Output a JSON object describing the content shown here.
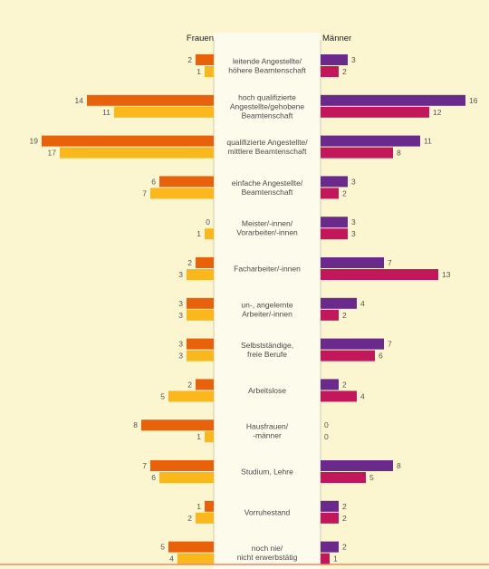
{
  "chart_data": {
    "type": "bar",
    "left_header": "Frauen",
    "right_header": "Männer",
    "colors": {
      "background": "#fbf6cf",
      "label_column": "#fdfbec",
      "frauen_a": "#e8620c",
      "frauen_b": "#fbb81c",
      "maenner_a": "#6a2a8c",
      "maenner_b": "#c2185b",
      "bottom_line": "#e58a6a"
    },
    "categories": [
      [
        "leitende Angestellte/",
        "höhere Beamtenschaft"
      ],
      [
        "hoch qualifizierte",
        "Angestellte/gehobene",
        "Beamtenschaft"
      ],
      [
        "qualifizierte Angestellte/",
        "mittlere Beamtenschaft"
      ],
      [
        "einfache Angestellte/",
        "Beamtenschaft"
      ],
      [
        "Meister/-innen/",
        "Vorarbeiter/-innen"
      ],
      [
        "Facharbeiter/-innen"
      ],
      [
        "un-, angelernte",
        "Arbeiter/-innen"
      ],
      [
        "Selbstständige,",
        "freie Berufe"
      ],
      [
        "Arbeitslose"
      ],
      [
        "Hausfrauen/",
        "-männer"
      ],
      [
        "Studium, Lehre"
      ],
      [
        "Vorruhestand"
      ],
      [
        "noch nie/",
        "nicht erwerbstätig"
      ]
    ],
    "series": [
      {
        "side": "left",
        "values": [
          2,
          14,
          19,
          6,
          0,
          2,
          3,
          3,
          2,
          8,
          7,
          1,
          5
        ]
      },
      {
        "side": "left",
        "values": [
          1,
          11,
          17,
          7,
          1,
          3,
          3,
          3,
          5,
          1,
          6,
          2,
          4
        ]
      },
      {
        "side": "right",
        "values": [
          3,
          16,
          11,
          3,
          3,
          7,
          4,
          7,
          2,
          0,
          8,
          2,
          2
        ]
      },
      {
        "side": "right",
        "values": [
          2,
          12,
          8,
          2,
          3,
          13,
          2,
          6,
          4,
          0,
          5,
          2,
          1
        ]
      }
    ],
    "xlim": [
      0,
      20
    ]
  }
}
